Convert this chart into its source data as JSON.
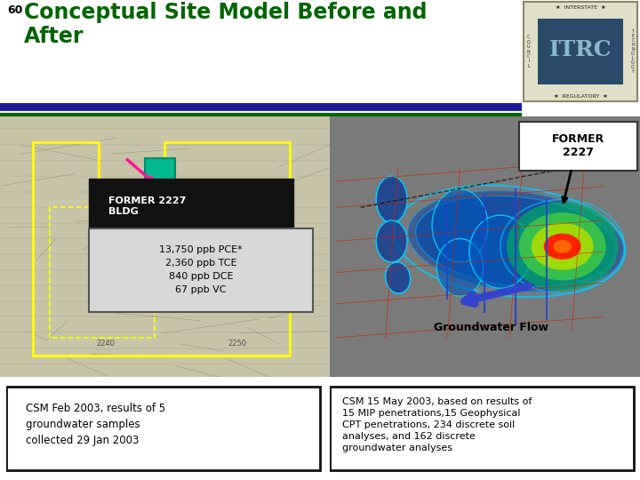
{
  "slide_number": "60",
  "title_line1": "Conceptual Site Model Before and",
  "title_line2": "After",
  "title_color": "#006400",
  "slide_number_color": "#000000",
  "bg_color": "#ffffff",
  "divider_blue": "#1a1a99",
  "divider_green": "#006400",
  "left_image_bg": "#c8c8b0",
  "right_image_bg": "#808080",
  "former_label_right": "FORMER\n2227",
  "bldg_label": "FORMER 2227\nBLDG",
  "contaminants": "13,750 ppb PCE*\n2,360 ppb TCE\n840 ppb DCE\n67 ppb VC",
  "gw_flow_label": "Groundwater Flow",
  "left_caption": "CSM Feb 2003, results of 5\ngroundwater samples\ncollected 29 Jan 2003",
  "right_caption": "CSM 15 May 2003, based on results of\n15 MIP penetrations,15 Geophysical\nCPT penetrations, 234 discrete soil\nanalyses, and 162 discrete\ngroundwater analyses",
  "teal_box_color": "#00b890",
  "arrow_color_magenta": "#ff1493",
  "yellow_outline": "#ffff00"
}
